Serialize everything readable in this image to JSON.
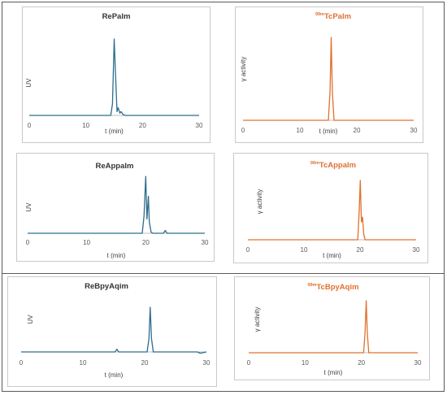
{
  "chart_data": [
    {
      "type": "line",
      "title": "RePalm",
      "xlabel": "t (min)",
      "ylabel": "UV",
      "xlim": [
        0,
        30
      ],
      "xticks": [
        "0",
        "10",
        "20",
        "30"
      ],
      "color": "#2e6d8e",
      "series": [
        {
          "x": [
            0,
            14.4,
            14.7,
            15.0,
            15.2,
            15.5,
            15.7,
            16.0,
            16.2,
            16.6,
            17.0,
            30
          ],
          "y": [
            0,
            0,
            0.15,
            1.0,
            0.6,
            0.05,
            0.1,
            0.03,
            0.05,
            0.01,
            0,
            0
          ]
        }
      ]
    },
    {
      "type": "line",
      "title_sup": "99m",
      "title": "TcPalm",
      "xlabel": "t (min)",
      "ylabel": "γ activity",
      "xlim": [
        0,
        30
      ],
      "xticks": [
        "0",
        "10",
        "20",
        "30"
      ],
      "color": "#e07030",
      "series": [
        {
          "x": [
            0,
            15.0,
            15.3,
            15.5,
            15.7,
            16.0,
            30
          ],
          "y": [
            0,
            0,
            0.35,
            1.0,
            0.35,
            0,
            0
          ]
        }
      ]
    },
    {
      "type": "line",
      "title": "ReAppalm",
      "xlabel": "t (min)",
      "ylabel": "UV",
      "xlim": [
        0,
        30
      ],
      "xticks": [
        "0",
        "10",
        "20",
        "30"
      ],
      "color": "#2e6d8e",
      "series": [
        {
          "x": [
            0,
            19.4,
            19.7,
            20.0,
            20.2,
            20.45,
            20.6,
            20.9,
            21.2,
            23.0,
            23.3,
            23.6,
            30
          ],
          "y": [
            0,
            0,
            0.3,
            1.0,
            0.25,
            0.65,
            0.2,
            0.02,
            0,
            0,
            0.05,
            0,
            0
          ]
        }
      ]
    },
    {
      "type": "line",
      "title_sup": "99m",
      "title": "TcAppalm",
      "xlabel": "t (min)",
      "ylabel": "γ activity",
      "xlim": [
        0,
        30
      ],
      "xticks": [
        "0",
        "10",
        "20",
        "30"
      ],
      "color": "#e07030",
      "series": [
        {
          "x": [
            0,
            19.6,
            19.85,
            20.05,
            20.25,
            20.45,
            20.65,
            20.9,
            30
          ],
          "y": [
            0,
            0,
            0.5,
            1.0,
            0.3,
            0.38,
            0.1,
            0,
            0
          ]
        }
      ]
    },
    {
      "type": "line",
      "title": "ReBpyAqim",
      "xlabel": "t (min)",
      "ylabel": "UV",
      "xlim": [
        0,
        30
      ],
      "xticks": [
        "0",
        "10",
        "20",
        "30"
      ],
      "color": "#2e6d8e",
      "series": [
        {
          "x": [
            0,
            15.2,
            15.5,
            15.8,
            20.4,
            20.7,
            20.9,
            21.1,
            21.4,
            28.5,
            29.0,
            30
          ],
          "y": [
            0,
            0,
            0.06,
            0,
            0,
            0.3,
            1.0,
            0.3,
            0,
            0,
            -0.03,
            0
          ]
        }
      ]
    },
    {
      "type": "line",
      "title_sup": "99m",
      "title": "TcBpyAqim",
      "xlabel": "t (min)",
      "ylabel": "γ activity",
      "xlim": [
        0,
        30
      ],
      "xticks": [
        "0",
        "10",
        "20",
        "30"
      ],
      "color": "#e07030",
      "series": [
        {
          "x": [
            0,
            20.4,
            20.65,
            20.85,
            21.05,
            21.3,
            30
          ],
          "y": [
            0,
            0,
            0.4,
            1.0,
            0.4,
            0,
            0
          ]
        }
      ]
    }
  ]
}
